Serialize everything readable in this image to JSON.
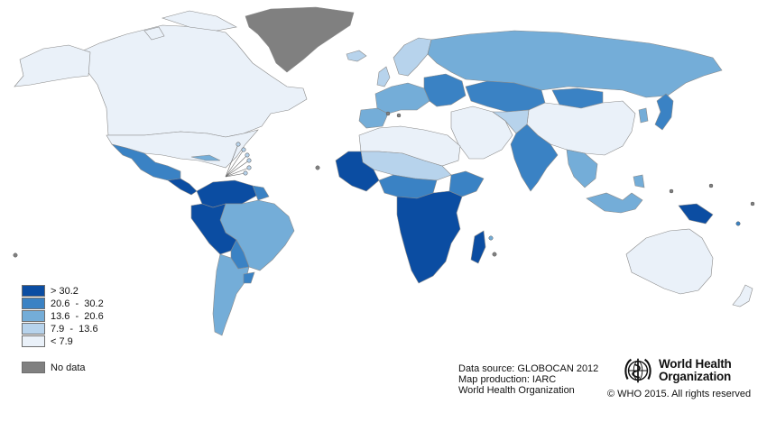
{
  "colors": {
    "level_1": "#0b4da2",
    "level_2": "#3a82c4",
    "level_3": "#74add8",
    "level_4": "#b7d3ec",
    "level_5": "#eaf1f9",
    "no_data": "#808080",
    "border": "#8a8a8a"
  },
  "legend": {
    "items": [
      {
        "label": "> 30.2",
        "color": "#0b4da2"
      },
      {
        "label": "20.6  -  30.2",
        "color": "#3a82c4"
      },
      {
        "label": "13.6  -  20.6",
        "color": "#74add8"
      },
      {
        "label": "7.9  -  13.6",
        "color": "#b7d3ec"
      },
      {
        "label": "< 7.9",
        "color": "#eaf1f9"
      }
    ],
    "no_data_label": "No data"
  },
  "source": {
    "line1": "Data source: GLOBOCAN 2012",
    "line2": "Map production: IARC",
    "line3": "World Health Organization"
  },
  "who": {
    "name_line1": "World Health",
    "name_line2": "Organization",
    "copyright": "© WHO 2015. All rights reserved",
    "emblem_icon": "who-emblem-icon"
  }
}
